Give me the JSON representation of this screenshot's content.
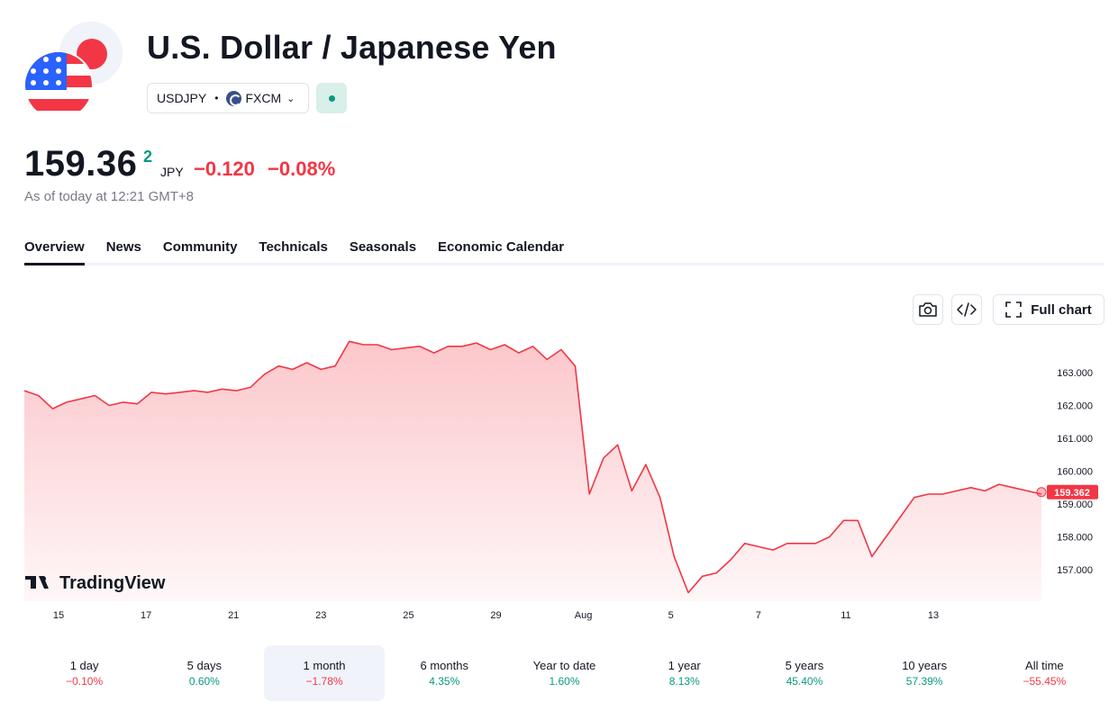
{
  "header": {
    "title": "U.S. Dollar / Japanese Yen",
    "symbol": "USDJPY",
    "exchange": "FXCM",
    "status_color": "#089981"
  },
  "quote": {
    "price": "159.36",
    "price_superscript": "2",
    "currency": "JPY",
    "change": "−0.120",
    "change_percent": "−0.08%",
    "as_of": "As of today at 12:21 GMT+8"
  },
  "tabs": [
    {
      "label": "Overview",
      "active": true
    },
    {
      "label": "News"
    },
    {
      "label": "Community"
    },
    {
      "label": "Technicals"
    },
    {
      "label": "Seasonals"
    },
    {
      "label": "Economic Calendar"
    }
  ],
  "toolbar": {
    "camera_icon": "camera-icon",
    "embed_icon": "embed-code-icon",
    "fullscreen_icon": "fullscreen-icon",
    "full_chart_label": "Full chart"
  },
  "chart_data": {
    "type": "area",
    "line_color": "#f23645",
    "watermark": "TradingView",
    "last_value_label": "159.362",
    "ylim": [
      156.3,
      164.1
    ],
    "y_ticks": [
      "163.000",
      "162.000",
      "161.000",
      "160.000",
      "159.000",
      "158.000",
      "157.000"
    ],
    "x_ticks": [
      "15",
      "17",
      "21",
      "23",
      "25",
      "29",
      "Aug",
      "5",
      "7",
      "11",
      "13"
    ],
    "series": [
      {
        "values": [
          162.45,
          162.3,
          161.9,
          162.1,
          162.2,
          162.3,
          162.0,
          162.1,
          162.05,
          162.4,
          162.35,
          162.4,
          162.45,
          162.4,
          162.5,
          162.45,
          162.55,
          162.95,
          163.2,
          163.1,
          163.3,
          163.1,
          163.2,
          163.95,
          163.85,
          163.85,
          163.7,
          163.75,
          163.8,
          163.6,
          163.8,
          163.8,
          163.9,
          163.7,
          163.85,
          163.6,
          163.8,
          163.4,
          163.7,
          163.2,
          159.3,
          160.4,
          160.8,
          159.4,
          160.2,
          159.2,
          157.4,
          156.3,
          156.8,
          156.9,
          157.3,
          157.8,
          157.7,
          157.6,
          157.8,
          157.8,
          157.8,
          158.0,
          158.5,
          158.5,
          157.4,
          158.0,
          158.6,
          159.2,
          159.3,
          159.3,
          159.4,
          159.5,
          159.4,
          159.6,
          159.5,
          159.4,
          159.3
        ]
      }
    ]
  },
  "ranges": [
    {
      "label": "1 day",
      "value": "−0.10%",
      "positive": false,
      "active": false
    },
    {
      "label": "5 days",
      "value": "0.60%",
      "positive": true,
      "active": false
    },
    {
      "label": "1 month",
      "value": "−1.78%",
      "positive": false,
      "active": true
    },
    {
      "label": "6 months",
      "value": "4.35%",
      "positive": true,
      "active": false
    },
    {
      "label": "Year to date",
      "value": "1.60%",
      "positive": true,
      "active": false
    },
    {
      "label": "1 year",
      "value": "8.13%",
      "positive": true,
      "active": false
    },
    {
      "label": "5 years",
      "value": "45.40%",
      "positive": true,
      "active": false
    },
    {
      "label": "10 years",
      "value": "57.39%",
      "positive": true,
      "active": false
    },
    {
      "label": "All time",
      "value": "−55.45%",
      "positive": false,
      "active": false
    }
  ]
}
